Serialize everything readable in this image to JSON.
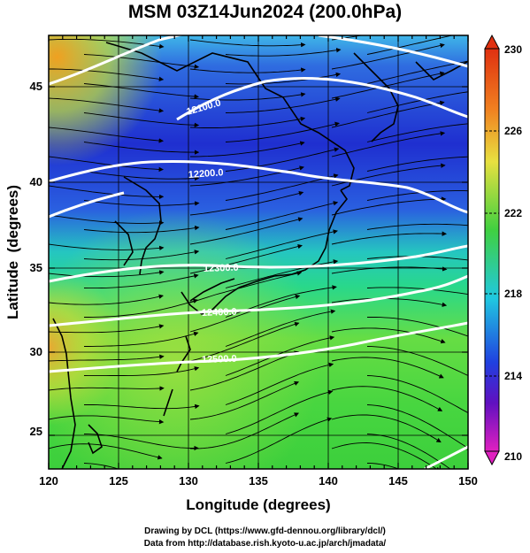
{
  "title": "MSM 03Z14Jun2024 (200.0hPa)",
  "axes": {
    "xlabel": "Longitude (degrees)",
    "ylabel": "Latitude  (degrees)",
    "xlim": [
      120,
      150
    ],
    "ylim": [
      23,
      48
    ],
    "xticks": [
      "120",
      "125",
      "130",
      "135",
      "140",
      "145",
      "150"
    ],
    "yticks": [
      "25",
      "30",
      "35",
      "40",
      "45"
    ]
  },
  "colorbar": {
    "labels": [
      "230",
      "226",
      "222",
      "218",
      "214",
      "210"
    ],
    "range": [
      210,
      230
    ]
  },
  "contours": [
    {
      "label": "12100.0"
    },
    {
      "label": "12200.0"
    },
    {
      "label": "12300.0"
    },
    {
      "label": "12400.0"
    },
    {
      "label": "12500.0"
    }
  ],
  "credits": {
    "line1": "Drawing by DCL (https://www.gfd-dennou.org/library/dcl/)",
    "line2": "Data from http://database.rish.kyoto-u.ac.jp/arch/jmadata/"
  }
}
